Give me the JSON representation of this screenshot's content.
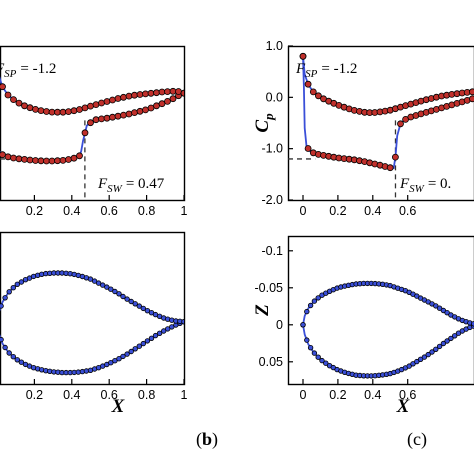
{
  "chart_data": [
    {
      "id": "b-top",
      "type": "line",
      "panel": "b",
      "xlim": [
        0,
        1
      ],
      "ylim": [
        1.0,
        -2.0
      ],
      "xticks": [
        "0.2",
        "0.4",
        "0.6",
        "0.8",
        "1"
      ],
      "xtick_values": [
        0.2,
        0.4,
        0.6,
        0.8,
        1.0
      ],
      "yticks": [],
      "y_inverted": true,
      "upper": {
        "x": [
          0.0,
          0.01,
          0.03,
          0.06,
          0.1,
          0.15,
          0.2,
          0.25,
          0.3,
          0.35,
          0.4,
          0.44,
          0.45,
          0.46,
          0.48,
          0.52,
          0.6,
          0.7,
          0.8,
          0.9,
          0.95,
          0.98,
          1.0
        ],
        "y": [
          -0.85,
          -1.05,
          -1.12,
          -1.16,
          -1.19,
          -1.21,
          -1.23,
          -1.24,
          -1.24,
          -1.23,
          -1.2,
          -1.15,
          -1.05,
          -0.85,
          -0.55,
          -0.44,
          -0.4,
          -0.33,
          -0.24,
          -0.1,
          -0.01,
          0.05,
          0.08
        ]
      },
      "lower": {
        "x": [
          0.0,
          0.01,
          0.03,
          0.06,
          0.1,
          0.15,
          0.2,
          0.25,
          0.3,
          0.35,
          0.4,
          0.45,
          0.5,
          0.55,
          0.6,
          0.65,
          0.7,
          0.75,
          0.8,
          0.85,
          0.9,
          0.95,
          0.98,
          1.0
        ],
        "y": [
          0.8,
          0.42,
          0.2,
          0.04,
          -0.08,
          -0.17,
          -0.23,
          -0.27,
          -0.29,
          -0.29,
          -0.27,
          -0.23,
          -0.17,
          -0.12,
          -0.07,
          -0.02,
          0.02,
          0.05,
          0.07,
          0.09,
          0.11,
          0.12,
          0.11,
          0.08
        ]
      },
      "ref_sp": {
        "label": "F",
        "sub": "SP",
        "value": "= -1.2",
        "y": -1.2
      },
      "ref_sw": {
        "label": "F",
        "sub": "SW",
        "value": "= 0.47",
        "x": 0.47
      }
    },
    {
      "id": "b-bottom",
      "type": "line",
      "panel": "b",
      "xlim": [
        0,
        1
      ],
      "ylim": [
        -0.12,
        0.08
      ],
      "xlabel": "X",
      "xticks": [
        "0.2",
        "0.4",
        "0.6",
        "0.8",
        "1"
      ],
      "xtick_values": [
        0.2,
        0.4,
        0.6,
        0.8,
        1.0
      ],
      "upper": {
        "x": [
          0.0,
          0.01,
          0.03,
          0.06,
          0.1,
          0.15,
          0.2,
          0.25,
          0.3,
          0.35,
          0.4,
          0.45,
          0.5,
          0.55,
          0.6,
          0.65,
          0.7,
          0.75,
          0.8,
          0.85,
          0.9,
          0.95,
          1.0
        ],
        "y": [
          0.0,
          0.014,
          0.027,
          0.038,
          0.047,
          0.054,
          0.059,
          0.062,
          0.064,
          0.065,
          0.065,
          0.064,
          0.062,
          0.058,
          0.053,
          0.047,
          0.04,
          0.032,
          0.024,
          0.016,
          0.009,
          0.003,
          -0.002
        ]
      },
      "lower": {
        "x": [
          0.0,
          0.01,
          0.03,
          0.06,
          0.1,
          0.15,
          0.2,
          0.25,
          0.3,
          0.35,
          0.4,
          0.45,
          0.5,
          0.55,
          0.6,
          0.65,
          0.7,
          0.75,
          0.8,
          0.85,
          0.9,
          0.95,
          1.0
        ],
        "y": [
          0.0,
          -0.015,
          -0.028,
          -0.04,
          -0.05,
          -0.057,
          -0.062,
          -0.065,
          -0.066,
          -0.066,
          -0.065,
          -0.062,
          -0.058,
          -0.052,
          -0.046,
          -0.039,
          -0.031,
          -0.024,
          -0.017,
          -0.011,
          -0.006,
          -0.003,
          -0.002
        ]
      }
    },
    {
      "id": "c-top",
      "type": "line",
      "panel": "c",
      "xlim": [
        -0.05,
        1
      ],
      "ylim": [
        1.0,
        -2.0
      ],
      "ylabel": "C",
      "ylabel_sub": "p",
      "xticks": [
        "0",
        "0.2",
        "0.4",
        "0.6"
      ],
      "xtick_values": [
        0.0,
        0.2,
        0.4,
        0.6
      ],
      "yticks": [
        "-2.0",
        "-1.0",
        "0.0",
        "1.0"
      ],
      "ytick_values": [
        -2.0,
        -1.0,
        0.0,
        1.0
      ],
      "y_inverted": true,
      "upper": {
        "x": [
          0.0,
          0.005,
          0.01,
          0.02,
          0.04,
          0.07,
          0.1,
          0.15,
          0.2,
          0.25,
          0.3,
          0.35,
          0.4,
          0.45,
          0.5,
          0.52,
          0.53,
          0.54,
          0.56,
          0.6,
          0.7,
          0.8,
          0.9,
          1.0
        ],
        "y": [
          0.8,
          0.2,
          -0.6,
          -0.95,
          -1.05,
          -1.1,
          -1.12,
          -1.15,
          -1.18,
          -1.2,
          -1.22,
          -1.25,
          -1.29,
          -1.33,
          -1.37,
          -1.38,
          -1.15,
          -0.75,
          -0.5,
          -0.4,
          -0.3,
          -0.2,
          -0.1,
          0.0
        ]
      },
      "lower": {
        "x": [
          0.0,
          0.01,
          0.03,
          0.06,
          0.1,
          0.15,
          0.2,
          0.25,
          0.3,
          0.35,
          0.4,
          0.45,
          0.5,
          0.55,
          0.6,
          0.7,
          0.8,
          0.9,
          1.0
        ],
        "y": [
          0.8,
          0.45,
          0.25,
          0.1,
          0.0,
          -0.08,
          -0.15,
          -0.21,
          -0.26,
          -0.29,
          -0.3,
          -0.28,
          -0.25,
          -0.2,
          -0.15,
          -0.05,
          0.03,
          0.08,
          0.12
        ]
      },
      "ref_sp": {
        "label": "F",
        "sub": "SP",
        "value": "= -1.2",
        "y": -1.2
      },
      "ref_sw": {
        "label": "F",
        "sub": "SW",
        "value": "= 0.",
        "x": 0.53
      }
    },
    {
      "id": "c-bottom",
      "type": "line",
      "panel": "c",
      "xlim": [
        -0.05,
        1
      ],
      "ylim": [
        -0.12,
        0.08
      ],
      "xlabel": "X",
      "ylabel": "Z",
      "xticks": [
        "0",
        "0.2",
        "0.4",
        "0.6"
      ],
      "xtick_values": [
        0.0,
        0.2,
        0.4,
        0.6
      ],
      "yticks": [
        "0.05",
        "0",
        "-0.05",
        "-0.1"
      ],
      "ytick_values": [
        0.05,
        0.0,
        -0.05,
        -0.1
      ],
      "upper": {
        "x": [
          0.0,
          0.01,
          0.03,
          0.06,
          0.1,
          0.15,
          0.2,
          0.25,
          0.3,
          0.35,
          0.4,
          0.45,
          0.5,
          0.55,
          0.6,
          0.65,
          0.7,
          0.75,
          0.8,
          0.85,
          0.9,
          0.95,
          1.0
        ],
        "y": [
          0.0,
          0.013,
          0.026,
          0.037,
          0.047,
          0.055,
          0.061,
          0.065,
          0.068,
          0.069,
          0.069,
          0.068,
          0.066,
          0.062,
          0.057,
          0.05,
          0.043,
          0.035,
          0.026,
          0.018,
          0.01,
          0.004,
          0.0
        ]
      },
      "lower": {
        "x": [
          0.0,
          0.01,
          0.03,
          0.06,
          0.1,
          0.15,
          0.2,
          0.25,
          0.3,
          0.35,
          0.4,
          0.45,
          0.5,
          0.55,
          0.6,
          0.65,
          0.7,
          0.75,
          0.8,
          0.85,
          0.9,
          0.95,
          1.0
        ],
        "y": [
          0.0,
          -0.012,
          -0.022,
          -0.031,
          -0.039,
          -0.045,
          -0.05,
          -0.053,
          -0.055,
          -0.056,
          -0.056,
          -0.055,
          -0.053,
          -0.049,
          -0.045,
          -0.039,
          -0.033,
          -0.027,
          -0.02,
          -0.013,
          -0.007,
          -0.003,
          0.0
        ]
      }
    }
  ],
  "panel_labels": {
    "b": "b",
    "c": "c"
  },
  "colors": {
    "model_line": "#3a4fd8",
    "marker_fill": "#c0302b",
    "marker_edge": "#000000",
    "guide": "#333333"
  }
}
